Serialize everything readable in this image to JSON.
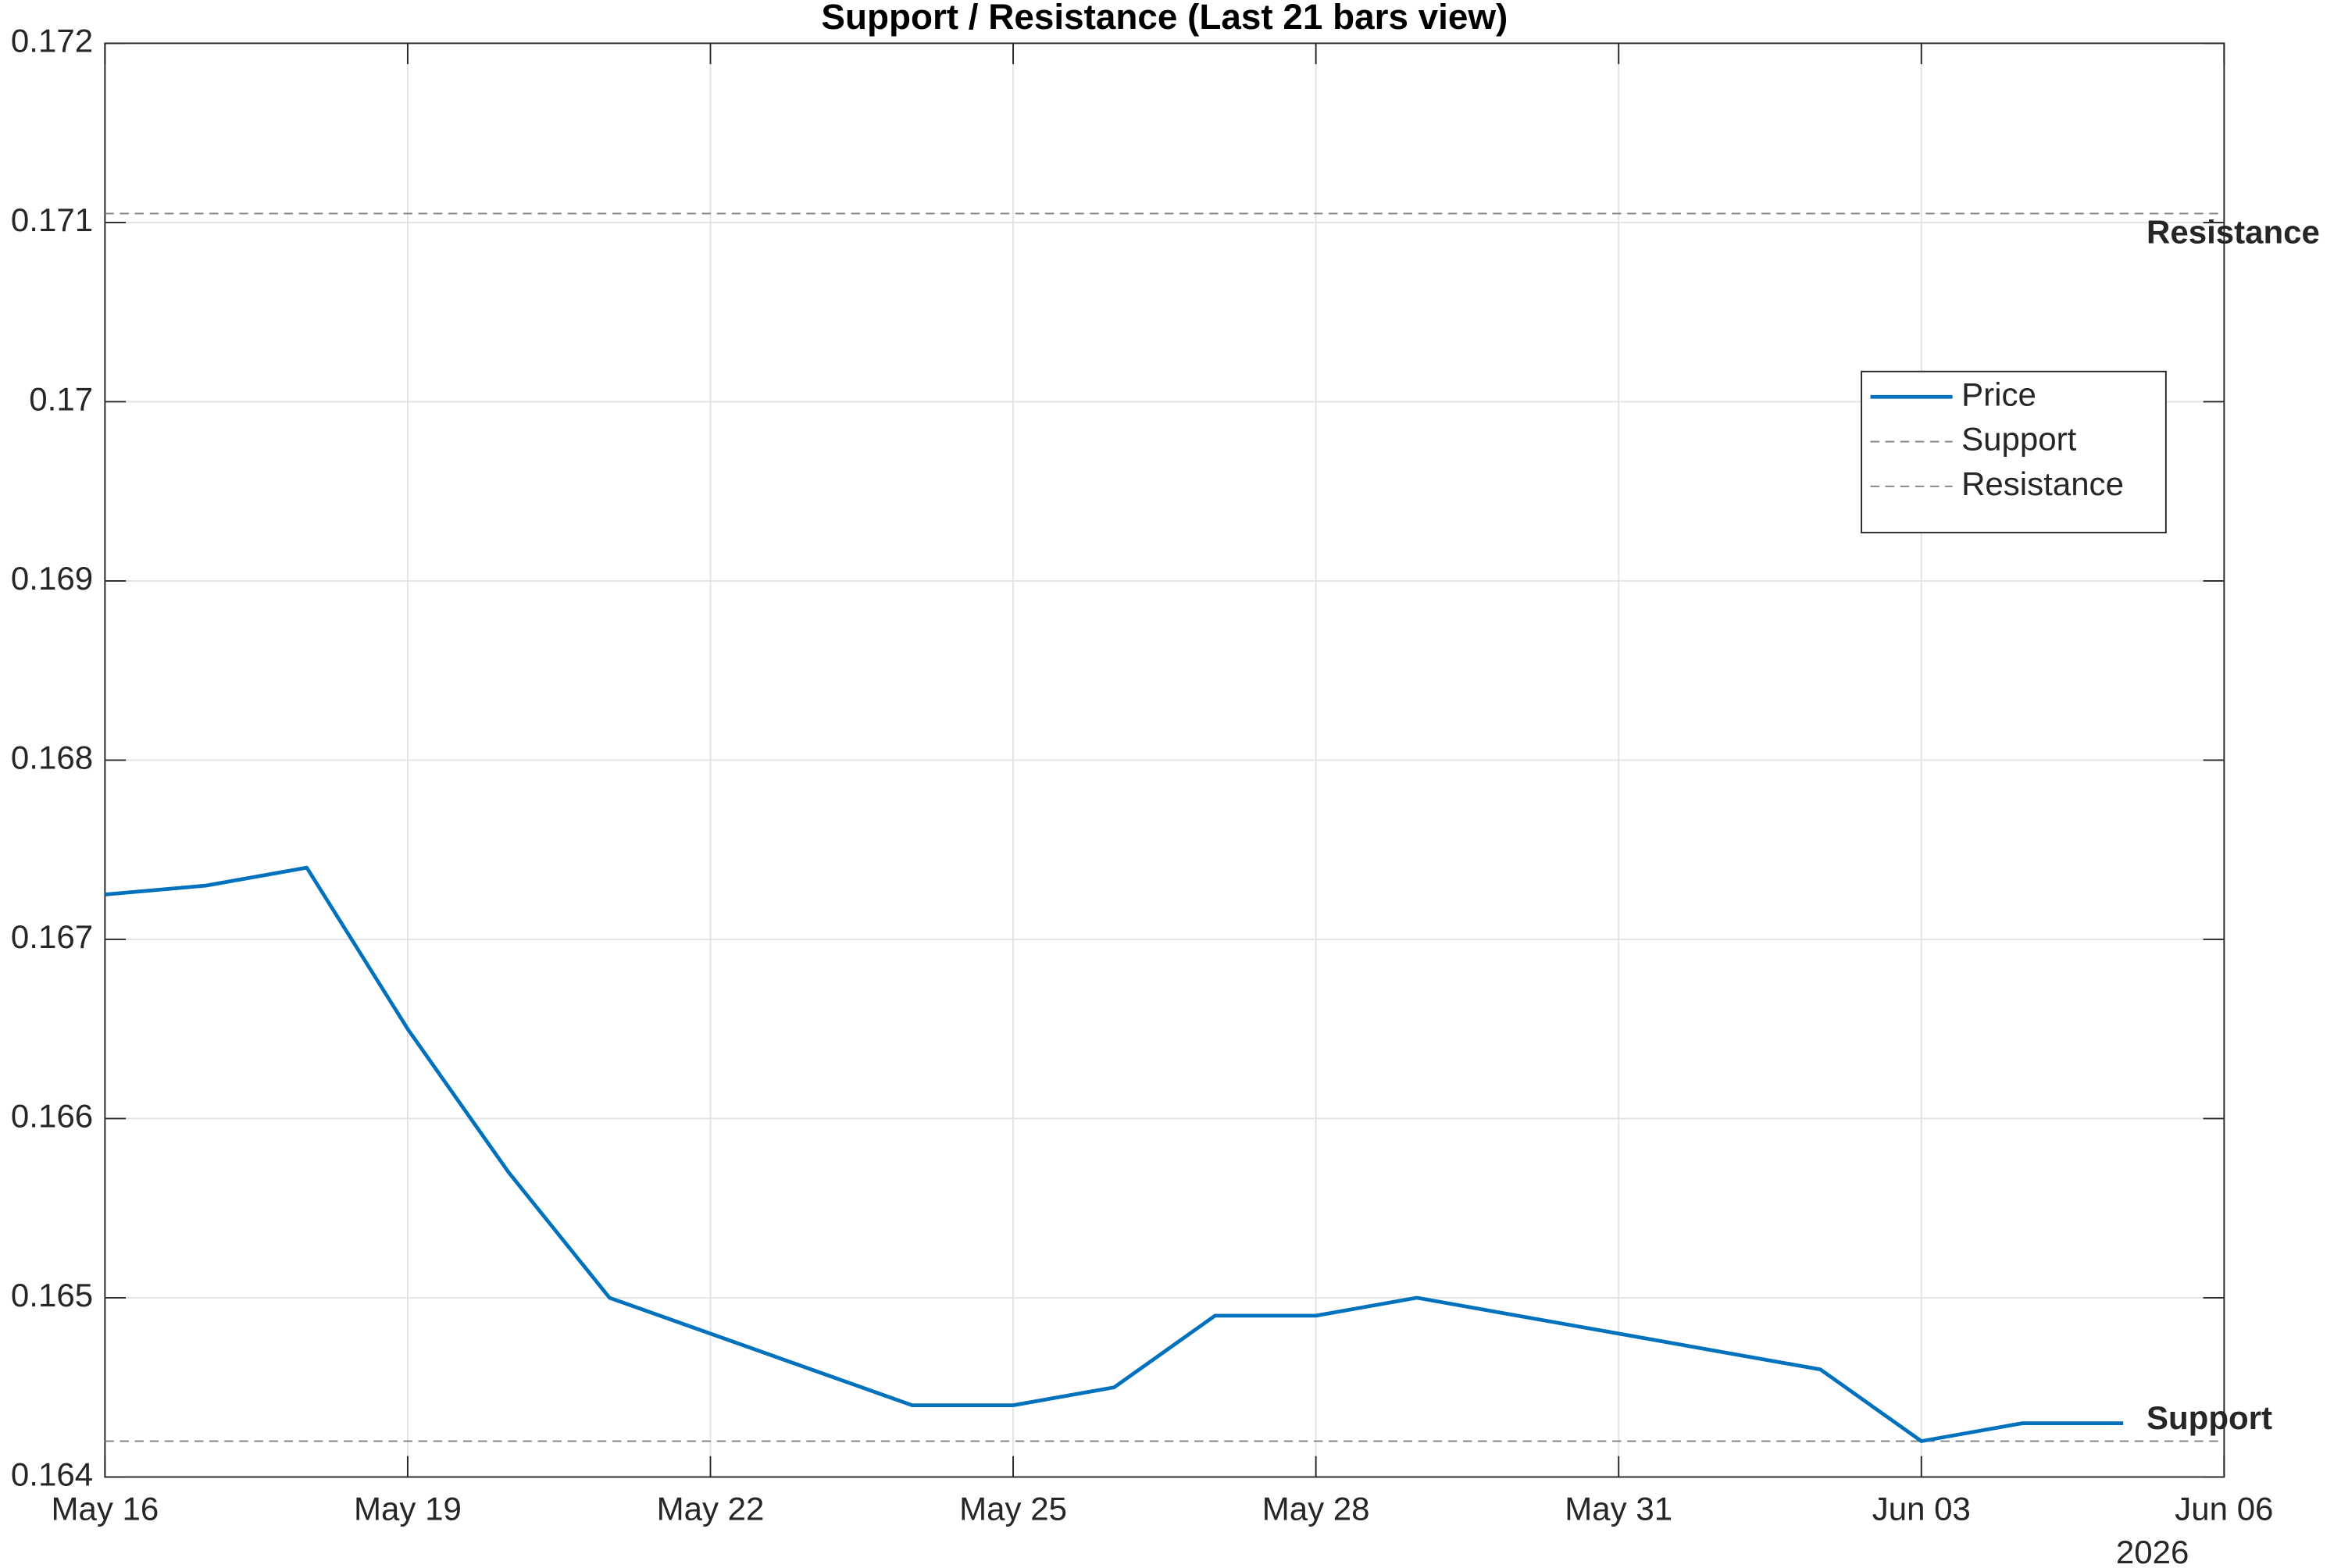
{
  "chart_data": {
    "type": "line",
    "title": "Support / Resistance (Last 21 bars view)",
    "x": [
      "2026-05-16",
      "2026-05-17",
      "2026-05-18",
      "2026-05-19",
      "2026-05-20",
      "2026-05-21",
      "2026-05-24",
      "2026-05-25",
      "2026-05-26",
      "2026-05-27",
      "2026-05-28",
      "2026-05-29",
      "2026-06-02",
      "2026-06-03",
      "2026-06-04",
      "2026-06-05"
    ],
    "series": [
      {
        "name": "Price",
        "color": "#0072bd",
        "values": [
          0.16725,
          0.1673,
          0.1674,
          0.1665,
          0.1657,
          0.165,
          0.1644,
          0.1644,
          0.1645,
          0.1649,
          0.1649,
          0.165,
          0.1646,
          0.1642,
          0.1643,
          0.1643
        ]
      }
    ],
    "hlines": [
      {
        "name": "Support",
        "value": 0.1642,
        "color": "#808080",
        "style": "dashed"
      },
      {
        "name": "Resistance",
        "value": 0.17105,
        "color": "#808080",
        "style": "dashed"
      }
    ],
    "xlim": [
      "2026-05-16",
      "2026-06-06"
    ],
    "xticks": [
      {
        "value": "2026-05-16",
        "label": "May 16"
      },
      {
        "value": "2026-05-19",
        "label": "May 19"
      },
      {
        "value": "2026-05-22",
        "label": "May 22"
      },
      {
        "value": "2026-05-25",
        "label": "May 25"
      },
      {
        "value": "2026-05-28",
        "label": "May 28"
      },
      {
        "value": "2026-05-31",
        "label": "May 31"
      },
      {
        "value": "2026-06-03",
        "label": "Jun 03"
      },
      {
        "value": "2026-06-06",
        "label": "Jun 06"
      }
    ],
    "x_secondary_label": "2026",
    "ylim": [
      0.164,
      0.172
    ],
    "yticks": [
      0.164,
      0.165,
      0.166,
      0.167,
      0.168,
      0.169,
      0.17,
      0.171,
      0.172
    ],
    "grid": true,
    "legend": "upper right"
  }
}
